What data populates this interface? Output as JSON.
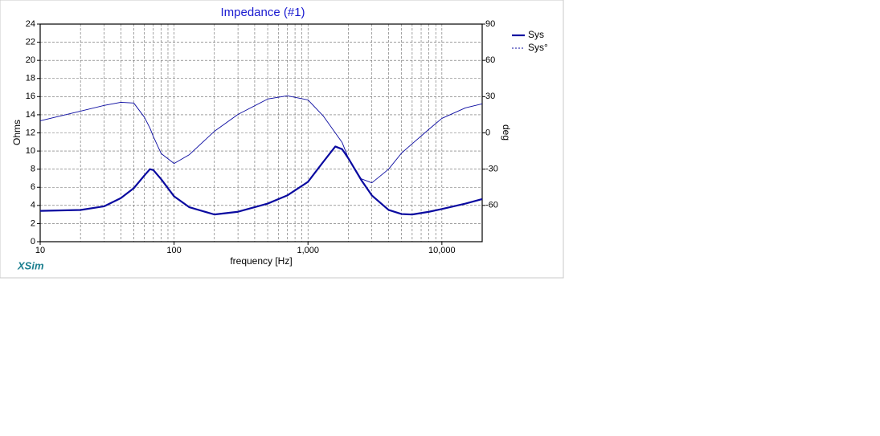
{
  "chart_data": {
    "type": "line",
    "title": "Impedance (#1)",
    "brand": "XSim",
    "xlabel": "frequency [Hz]",
    "ylabel": "Ohms",
    "y2label": "deg",
    "xscale": "log",
    "grid": true,
    "legend": "right",
    "x": [
      10,
      20,
      30,
      40,
      50,
      60,
      66,
      70,
      80,
      100,
      130,
      200,
      300,
      500,
      700,
      1000,
      1300,
      1600,
      1800,
      2000,
      2500,
      3000,
      4000,
      5000,
      6000,
      8000,
      10000,
      15000,
      20000
    ],
    "series": [
      {
        "name": "Sys",
        "color": "#0a0aa0",
        "width": 2.2,
        "dash": false,
        "values": [
          3.4,
          3.5,
          3.9,
          4.8,
          5.9,
          7.3,
          8.0,
          7.9,
          6.9,
          5.0,
          3.8,
          3.0,
          3.3,
          4.2,
          5.1,
          6.6,
          8.8,
          10.5,
          10.2,
          9.2,
          6.8,
          5.1,
          3.5,
          3.05,
          3.0,
          3.3,
          3.6,
          4.2,
          4.7
        ]
      },
      {
        "name": "Sys°",
        "color": "#0a0aa0",
        "width": 0.9,
        "dash": true,
        "axis": "y2",
        "values": [
          10,
          18,
          22.7,
          25.3,
          24.7,
          13,
          4,
          -3,
          -17,
          -25.3,
          -18,
          1.3,
          15.3,
          28,
          30.7,
          27.3,
          14,
          0,
          -8,
          -20.7,
          -38,
          -41.3,
          -30,
          -16.7,
          -9,
          3,
          12,
          20.7,
          24
        ]
      }
    ],
    "xlim": [
      10,
      20000
    ],
    "xticks": [
      10,
      100,
      {
        "value": 1000,
        "label": "1,000"
      },
      {
        "value": 10000,
        "label": "10,000"
      }
    ],
    "ylim": [
      0,
      24
    ],
    "yticks": [
      0,
      2,
      4,
      6,
      8,
      10,
      12,
      14,
      16,
      18,
      20,
      22,
      24
    ],
    "y2lim": [
      -90,
      90
    ],
    "y2ticks": [
      -60,
      -30,
      0,
      30,
      60,
      90
    ]
  }
}
